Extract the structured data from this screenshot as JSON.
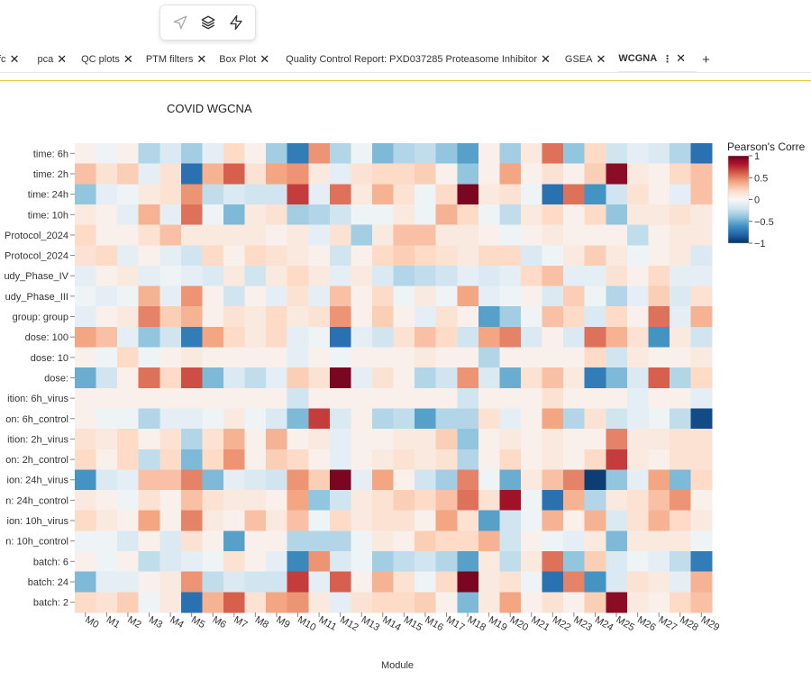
{
  "toolbar": {
    "items": [
      {
        "name": "send-icon"
      },
      {
        "name": "layers-icon"
      },
      {
        "name": "lightning-icon"
      }
    ]
  },
  "tabs": [
    {
      "label": "fc"
    },
    {
      "label": "pca"
    },
    {
      "label": "QC plots"
    },
    {
      "label": "PTM filters"
    },
    {
      "label": "Box Plot"
    },
    {
      "label": "Quality Control Report: PXD037285 Proteasome Inhibitor"
    },
    {
      "label": "GSEA"
    },
    {
      "label": "WCGNA",
      "active": true
    }
  ],
  "colors": {
    "accent": "#f0c24a",
    "neg": "#053061",
    "mid": "#f7f7f7",
    "pos": "#67001f"
  },
  "chart_data": {
    "type": "heatmap",
    "title": "COVID WGCNA",
    "xlabel": "Module",
    "ylabel": "",
    "colorbar": {
      "title": "Pearson's Corre",
      "range": [
        -1,
        1
      ],
      "ticks": [
        1,
        0.5,
        0,
        -0.5,
        -1
      ],
      "tick_labels": [
        "1",
        "0.5",
        "0",
        "−0.5",
        "−1"
      ]
    },
    "x": [
      "M0",
      "M1",
      "M2",
      "M3",
      "M4",
      "M5",
      "M6",
      "M7",
      "M8",
      "M9",
      "M10",
      "M11",
      "M12",
      "M13",
      "M14",
      "M15",
      "M16",
      "M17",
      "M18",
      "M19",
      "M20",
      "M21",
      "M22",
      "M23",
      "M24",
      "M25",
      "M26",
      "M27",
      "M28",
      "M29"
    ],
    "y": [
      "time: 6h",
      "time: 2h",
      "time: 24h",
      "time: 10h",
      "Protocol_2024",
      "Protocol_2024",
      "udy_Phase_IV",
      "udy_Phase_III",
      "group: group",
      "dose: 100",
      "dose: 10",
      "dose:",
      "ition: 6h_virus",
      "on: 6h_control",
      "ition: 2h_virus",
      "on: 2h_control",
      "ion: 24h_virus",
      "n: 24h_control",
      "ion: 10h_virus",
      "n: 10h_control",
      "batch: 6",
      "batch: 24",
      "batch: 2"
    ],
    "z": [
      [
        0.05,
        -0.05,
        0.05,
        -0.3,
        -0.15,
        -0.35,
        -0.1,
        0.2,
        0.05,
        -0.35,
        -0.7,
        0.45,
        -0.3,
        -0.05,
        -0.45,
        -0.3,
        -0.25,
        -0.4,
        -0.55,
        0.05,
        -0.35,
        0.1,
        0.55,
        -0.4,
        0.2,
        -0.2,
        -0.1,
        -0.15,
        -0.3,
        -0.75
      ],
      [
        0.3,
        0.15,
        0.25,
        -0.1,
        0.15,
        -0.75,
        0.35,
        0.6,
        0.15,
        0.4,
        0.45,
        0.1,
        -0.1,
        0.15,
        0.2,
        0.2,
        0.25,
        0.05,
        -0.4,
        0.05,
        0.4,
        0.05,
        0.15,
        0.05,
        0.25,
        0.9,
        0.1,
        0.05,
        0.2,
        0.3
      ],
      [
        -0.4,
        -0.1,
        -0.05,
        0.1,
        0.15,
        0.45,
        -0.25,
        -0.15,
        -0.2,
        -0.2,
        0.7,
        -0.1,
        0.55,
        0.1,
        0.35,
        0.15,
        -0.05,
        0.2,
        0.95,
        0.1,
        0.15,
        -0.05,
        -0.75,
        0.55,
        -0.6,
        -0.2,
        0.15,
        0.05,
        -0.1,
        0.3
      ],
      [
        0.1,
        0.05,
        -0.1,
        0.35,
        -0.1,
        0.55,
        -0.05,
        -0.45,
        0.1,
        0.15,
        -0.35,
        -0.3,
        -0.2,
        -0.05,
        -0.05,
        0.1,
        -0.05,
        0.35,
        0.2,
        -0.05,
        -0.25,
        0.1,
        0.2,
        0.05,
        0.2,
        -0.4,
        0.1,
        0.1,
        0.15,
        0.1
      ],
      [
        0.2,
        0.05,
        0.05,
        0.15,
        0.3,
        0.1,
        0.1,
        0.1,
        0.1,
        0.05,
        0.1,
        -0.1,
        0.15,
        -0.35,
        0.1,
        0.3,
        0.3,
        0.1,
        0.1,
        0.05,
        -0.05,
        0.05,
        0.1,
        0.05,
        0.05,
        0.05,
        -0.25,
        0.05,
        0.1,
        0.1
      ],
      [
        0.15,
        0.2,
        -0.1,
        0.05,
        -0.1,
        -0.2,
        0.2,
        0.05,
        0.2,
        0.15,
        0.1,
        0.05,
        -0.2,
        0.05,
        0.2,
        0.25,
        0.2,
        0.15,
        0.1,
        0.2,
        0.2,
        -0.15,
        -0.05,
        0.1,
        0.25,
        0.1,
        -0.05,
        0.05,
        0.1,
        -0.15
      ],
      [
        -0.1,
        0.05,
        0.1,
        -0.1,
        -0.05,
        -0.1,
        -0.15,
        0.1,
        -0.2,
        0.1,
        0.2,
        0.1,
        -0.1,
        0.1,
        -0.15,
        -0.3,
        -0.25,
        -0.2,
        -0.1,
        -0.15,
        -0.1,
        0.2,
        0.3,
        -0.1,
        -0.1,
        0.15,
        0.05,
        0.2,
        -0.1,
        -0.1
      ],
      [
        -0.05,
        -0.1,
        -0.05,
        0.35,
        -0.1,
        0.45,
        0.05,
        -0.2,
        0.05,
        -0.1,
        0.15,
        -0.1,
        0.3,
        0.05,
        0.2,
        -0.05,
        0.1,
        -0.05,
        0.4,
        -0.1,
        -0.05,
        0.05,
        -0.15,
        0.25,
        -0.05,
        -0.3,
        -0.1,
        0.25,
        -0.15,
        0.15
      ],
      [
        -0.1,
        0.05,
        0.1,
        0.5,
        0.25,
        0.35,
        0.05,
        0.15,
        0.1,
        0.2,
        0.1,
        0.15,
        0.45,
        0.05,
        0.25,
        0.05,
        -0.1,
        0.15,
        0.05,
        -0.55,
        -0.35,
        -0.05,
        0.3,
        0.2,
        -0.15,
        0.2,
        0.05,
        0.55,
        -0.1,
        0.35
      ],
      [
        0.4,
        0.3,
        -0.1,
        -0.4,
        -0.2,
        -0.7,
        0.4,
        0.2,
        0.1,
        0.2,
        -0.1,
        -0.05,
        -0.75,
        -0.1,
        -0.2,
        0.15,
        0.3,
        0.2,
        -0.2,
        0.4,
        0.5,
        -0.15,
        0.05,
        -0.15,
        0.55,
        0.35,
        0.15,
        -0.6,
        0.1,
        -0.2
      ],
      [
        0.05,
        -0.05,
        0.2,
        -0.05,
        0.05,
        0.1,
        0.05,
        0.05,
        0.05,
        0.05,
        -0.1,
        0.05,
        -0.05,
        0.05,
        0.05,
        0.05,
        0.1,
        0.05,
        0.05,
        -0.3,
        0.05,
        0.05,
        0.05,
        0.05,
        0.2,
        -0.2,
        0.1,
        0.05,
        0.05,
        0.1
      ],
      [
        -0.5,
        -0.2,
        0.05,
        0.55,
        0.2,
        0.65,
        -0.45,
        -0.15,
        -0.25,
        -0.1,
        0.25,
        0.15,
        0.95,
        -0.1,
        0.15,
        0.05,
        -0.3,
        -0.2,
        0.45,
        -0.15,
        -0.5,
        0.15,
        0.3,
        0.1,
        -0.7,
        -0.45,
        -0.15,
        0.6,
        -0.3,
        0.2
      ],
      [
        0.05,
        0.05,
        0.05,
        0.05,
        0.05,
        0.05,
        0.05,
        0.05,
        0.05,
        0.05,
        -0.2,
        0.05,
        0.05,
        0.05,
        0.05,
        0.05,
        0.05,
        0.05,
        -0.2,
        0.05,
        0.05,
        0.05,
        0.15,
        0.05,
        0.05,
        0.05,
        -0.1,
        0.05,
        0.05,
        -0.1
      ],
      [
        0.05,
        -0.05,
        -0.05,
        -0.3,
        -0.1,
        -0.1,
        -0.05,
        0.1,
        -0.05,
        -0.15,
        -0.45,
        0.7,
        -0.15,
        0.05,
        -0.3,
        -0.25,
        -0.55,
        -0.3,
        -0.3,
        0.15,
        -0.1,
        0.05,
        0.4,
        -0.3,
        0.15,
        -0.2,
        -0.1,
        -0.05,
        -0.25,
        -0.9
      ],
      [
        0.15,
        0.1,
        0.2,
        0.05,
        0.15,
        -0.3,
        0.15,
        0.35,
        0.05,
        0.35,
        0.05,
        0.1,
        -0.1,
        0.05,
        0.05,
        0.1,
        0.1,
        0.25,
        -0.4,
        0.05,
        0.1,
        0.05,
        0.1,
        0.05,
        0.05,
        0.5,
        0.1,
        0.1,
        0.15,
        0.15
      ],
      [
        0.2,
        0.05,
        0.2,
        -0.25,
        0.2,
        -0.45,
        0.2,
        0.45,
        0.05,
        0.25,
        0.2,
        0.05,
        -0.1,
        0.05,
        0.1,
        0.15,
        0.1,
        0.15,
        -0.3,
        0.05,
        0.2,
        0.05,
        0.1,
        0.05,
        0.2,
        0.7,
        0.1,
        0.05,
        0.15,
        0.15
      ],
      [
        -0.6,
        -0.15,
        -0.1,
        0.3,
        0.3,
        0.5,
        -0.45,
        -0.1,
        -0.15,
        -0.2,
        0.45,
        0.25,
        0.95,
        -0.1,
        0.4,
        0.05,
        -0.2,
        -0.35,
        0.5,
        -0.05,
        -0.5,
        0.1,
        0.3,
        0.5,
        -0.95,
        -0.4,
        -0.1,
        0.4,
        -0.45,
        0.2
      ],
      [
        0.1,
        0.05,
        -0.05,
        0.15,
        0.05,
        0.3,
        0.15,
        0.1,
        0.1,
        0.05,
        0.4,
        -0.4,
        -0.2,
        0.1,
        0.15,
        0.25,
        0.2,
        0.3,
        0.55,
        0.15,
        0.85,
        -0.05,
        -0.75,
        0.35,
        -0.3,
        0.1,
        0.15,
        0.3,
        0.45,
        0.05
      ],
      [
        0.2,
        0.1,
        0.05,
        0.4,
        0.05,
        0.5,
        0.1,
        0.05,
        0.3,
        0.1,
        0.3,
        -0.05,
        0.2,
        0.1,
        0.15,
        0.15,
        0.05,
        0.4,
        0.15,
        -0.55,
        -0.2,
        -0.05,
        0.35,
        0.05,
        0.35,
        -0.15,
        0.15,
        0.35,
        0.2,
        0.1
      ],
      [
        -0.05,
        -0.05,
        -0.15,
        0.05,
        -0.15,
        0.15,
        0.05,
        -0.55,
        0.05,
        0.05,
        -0.3,
        -0.3,
        -0.3,
        -0.05,
        0.1,
        0.05,
        0.25,
        0.2,
        0.2,
        0.35,
        -0.2,
        0.05,
        -0.05,
        -0.1,
        0.1,
        -0.45,
        0.1,
        0.1,
        0.1,
        -0.05
      ],
      [
        0.05,
        -0.05,
        0.05,
        -0.25,
        -0.15,
        -0.1,
        -0.05,
        0.15,
        0.05,
        -0.1,
        -0.65,
        0.45,
        -0.15,
        -0.05,
        -0.35,
        -0.25,
        -0.2,
        -0.3,
        -0.55,
        0.1,
        -0.25,
        0.1,
        0.55,
        -0.4,
        0.25,
        -0.15,
        -0.05,
        -0.1,
        -0.25,
        -0.7
      ],
      [
        -0.45,
        -0.1,
        -0.1,
        0.05,
        0.1,
        0.45,
        -0.25,
        -0.15,
        -0.2,
        -0.2,
        0.7,
        -0.1,
        0.6,
        0.05,
        0.35,
        0.15,
        -0.05,
        0.2,
        0.95,
        0.1,
        0.15,
        -0.05,
        -0.75,
        0.5,
        -0.6,
        -0.15,
        0.15,
        0.1,
        -0.1,
        0.35
      ],
      [
        0.2,
        0.15,
        0.25,
        -0.05,
        0.1,
        -0.75,
        0.35,
        0.6,
        0.15,
        0.4,
        0.45,
        0.1,
        -0.1,
        0.15,
        0.2,
        0.2,
        0.25,
        0.05,
        -0.45,
        0.1,
        0.4,
        0.05,
        0.15,
        0.05,
        0.25,
        0.9,
        0.1,
        0.05,
        0.2,
        0.3
      ]
    ]
  }
}
